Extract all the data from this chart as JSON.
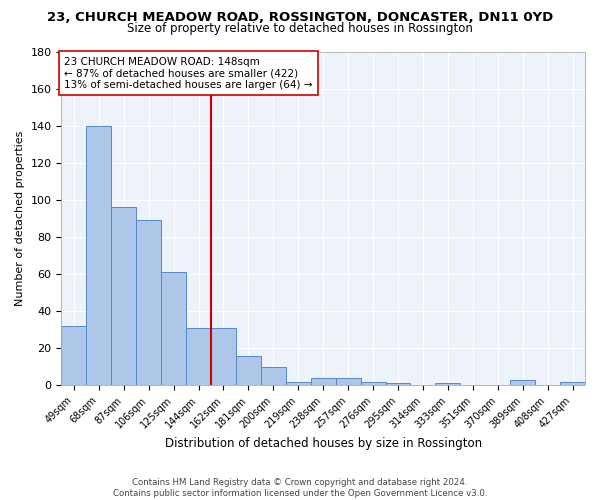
{
  "title": "23, CHURCH MEADOW ROAD, ROSSINGTON, DONCASTER, DN11 0YD",
  "subtitle": "Size of property relative to detached houses in Rossington",
  "xlabel": "Distribution of detached houses by size in Rossington",
  "ylabel": "Number of detached properties",
  "categories": [
    "49sqm",
    "68sqm",
    "87sqm",
    "106sqm",
    "125sqm",
    "144sqm",
    "162sqm",
    "181sqm",
    "200sqm",
    "219sqm",
    "238sqm",
    "257sqm",
    "276sqm",
    "295sqm",
    "314sqm",
    "333sqm",
    "351sqm",
    "370sqm",
    "389sqm",
    "408sqm",
    "427sqm"
  ],
  "values": [
    32,
    140,
    96,
    89,
    61,
    31,
    31,
    16,
    10,
    2,
    4,
    4,
    2,
    1,
    0,
    1,
    0,
    0,
    3,
    0,
    2
  ],
  "bar_color": "#aec6e8",
  "bar_edge_color": "#5588cc",
  "red_line_x": 5.5,
  "red_line_color": "#cc0000",
  "ylim": [
    0,
    180
  ],
  "yticks": [
    0,
    20,
    40,
    60,
    80,
    100,
    120,
    140,
    160,
    180
  ],
  "annotation_text": "23 CHURCH MEADOW ROAD: 148sqm\n← 87% of detached houses are smaller (422)\n13% of semi-detached houses are larger (64) →",
  "footer_text": "Contains HM Land Registry data © Crown copyright and database right 2024.\nContains public sector information licensed under the Open Government Licence v3.0.",
  "bg_color": "#eef2fb",
  "title_fontsize": 9.5,
  "subtitle_fontsize": 8.5
}
